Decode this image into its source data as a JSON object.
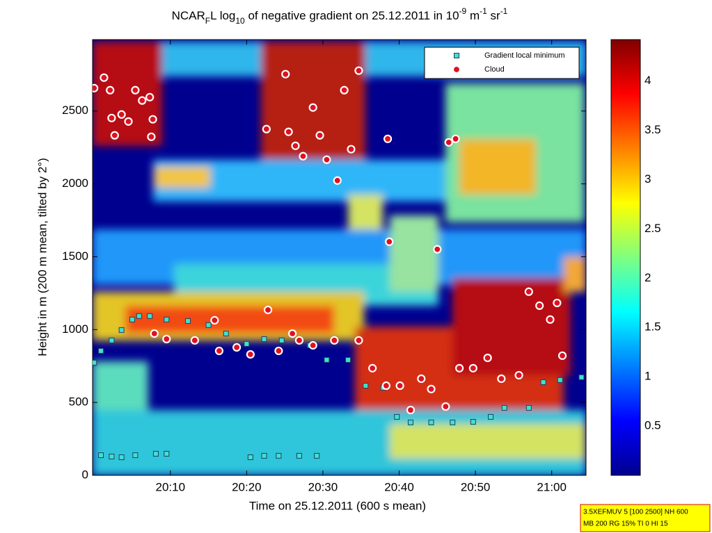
{
  "chart_data": {
    "type": "scatter",
    "title": [
      {
        "text": "NCAR"
      },
      {
        "text": "F",
        "script": "sub"
      },
      {
        "text": "L log"
      },
      {
        "text": "10",
        "script": "sub"
      },
      {
        "text": " of negative gradient on 25.12.2011 in 10"
      },
      {
        "text": "-9",
        "script": "super"
      },
      {
        "text": " m"
      },
      {
        "text": "-1",
        "script": "super"
      },
      {
        "text": " sr"
      },
      {
        "text": "-1",
        "script": "super"
      }
    ],
    "x_label": "Time on 25.12.2011 (600 s mean)",
    "y_label": "Height in m (200 m mean, tilted by 2°)",
    "xlim": [
      -0.2,
      64.5
    ],
    "ylim": [
      0,
      2990
    ],
    "xticks": [
      {
        "value": 10,
        "label": "20:10"
      },
      {
        "value": 20,
        "label": "20:20"
      },
      {
        "value": 30,
        "label": "20:30"
      },
      {
        "value": 40,
        "label": "20:40"
      },
      {
        "value": 50,
        "label": "20:50"
      },
      {
        "value": 60,
        "label": "21:00"
      }
    ],
    "yticks": [
      0,
      500,
      1000,
      1500,
      2000,
      2500
    ],
    "colorbar": {
      "lim": [
        0,
        4.42
      ],
      "ticks": [
        0.5,
        1,
        1.5,
        2,
        2.5,
        3,
        3.5,
        4
      ]
    },
    "legend": "upper right",
    "series": [
      {
        "name": "Gradient local minimum",
        "color": "#40e0d0",
        "marker": "square",
        "x": [
          0.0,
          0.9,
          2.3,
          3.6,
          5.0,
          5.9,
          7.3,
          9.5,
          12.3,
          15.0,
          17.3,
          20.0,
          22.3,
          24.6,
          28.3,
          30.5,
          33.3,
          35.6,
          37.9,
          39.7,
          41.5,
          44.2,
          47.0,
          49.7,
          52.0,
          53.8,
          57.0,
          58.9,
          61.1,
          63.9,
          0.9,
          2.3,
          3.6,
          5.4,
          8.1,
          9.5,
          20.5,
          22.3,
          24.2,
          26.9,
          29.2
        ],
        "values": [
          773,
          854,
          926,
          997,
          1069,
          1093,
          1093,
          1069,
          1059,
          1031,
          973,
          902,
          935,
          926,
          892,
          792,
          792,
          615,
          601,
          401,
          363,
          363,
          363,
          367,
          401,
          463,
          463,
          639,
          654,
          673,
          138,
          129,
          124,
          138,
          148,
          148,
          124,
          134,
          134,
          134,
          134
        ]
      },
      {
        "name": "Cloud",
        "color": "#e01020",
        "marker": "circle",
        "x": [
          0.0,
          1.3,
          2.1,
          2.3,
          2.7,
          3.6,
          4.5,
          5.4,
          6.3,
          7.3,
          7.7,
          7.5,
          22.6,
          25.1,
          25.5,
          26.4,
          27.4,
          28.7,
          29.6,
          30.5,
          31.9,
          32.8,
          33.7,
          34.7,
          38.5,
          38.7,
          45.0,
          46.5,
          47.4,
          7.9,
          9.5,
          13.2,
          15.8,
          16.4,
          18.7,
          20.5,
          22.8,
          24.2,
          26.0,
          26.9,
          28.7,
          31.5,
          34.7,
          36.5,
          38.3,
          40.1,
          41.5,
          42.9,
          44.2,
          46.1,
          47.9,
          49.7,
          51.6,
          53.4,
          55.7,
          57.0,
          58.4,
          59.8,
          60.7,
          61.4
        ],
        "values": [
          2657,
          2729,
          2643,
          2452,
          2333,
          2476,
          2428,
          2643,
          2572,
          2595,
          2443,
          2323,
          2376,
          2753,
          2357,
          2261,
          2190,
          2524,
          2333,
          2166,
          2023,
          2643,
          2238,
          2777,
          2309,
          1603,
          1551,
          2285,
          2309,
          973,
          935,
          926,
          1064,
          854,
          878,
          830,
          1135,
          854,
          973,
          926,
          892,
          926,
          926,
          735,
          615,
          615,
          448,
          663,
          592,
          472,
          735,
          735,
          806,
          663,
          687,
          1260,
          1164,
          1069,
          1183,
          821
        ]
      }
    ],
    "annotation": [
      "3.5XEFMUV 5 [100 2500] NH 600",
      "MB 200 RG 15% TI 0 HI 15"
    ]
  }
}
